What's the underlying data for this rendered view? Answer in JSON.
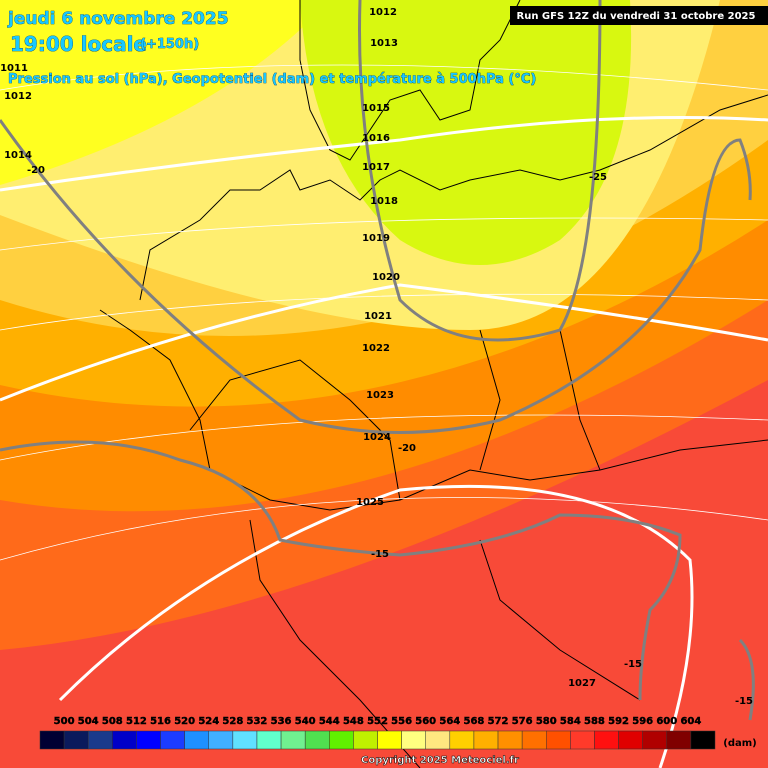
{
  "header": {
    "date": "jeudi 6 novembre 2025",
    "time": "19:00 locale",
    "lead": "(+150h)",
    "subtitle": "Pression au sol (hPa), Geopotentiel (dam) et température à 500hPa (°C)",
    "run": "Run GFS 12Z du vendredi 31 octobre 2025"
  },
  "isobar_labels": [
    "1012",
    "1013",
    "1011",
    "1012",
    "1014",
    "1015",
    "1016",
    "1017",
    "1018",
    "1019",
    "1020",
    "1021",
    "1022",
    "1023",
    "1024",
    "1025",
    "1027"
  ],
  "temperature_labels": [
    "-20",
    "-25",
    "-20",
    "-15",
    "-15",
    "-15"
  ],
  "legend": {
    "levels": [
      500,
      504,
      508,
      512,
      516,
      520,
      524,
      528,
      532,
      536,
      540,
      544,
      548,
      552,
      556,
      560,
      564,
      568,
      572,
      576,
      580,
      584,
      588,
      592,
      596,
      600,
      604
    ],
    "colors": [
      "#000033",
      "#0a1a5c",
      "#1a3a8c",
      "#0000c8",
      "#0000ff",
      "#1c3cff",
      "#1e90ff",
      "#40b0ff",
      "#60e0ff",
      "#60ffcc",
      "#70f090",
      "#50e050",
      "#60f000",
      "#c0f000",
      "#ffff00",
      "#ffff80",
      "#ffe880",
      "#ffd000",
      "#ffb000",
      "#ff9000",
      "#ff7000",
      "#ff5000",
      "#ff3a2a",
      "#ff1010",
      "#e00000",
      "#b00000",
      "#800000",
      "#000000"
    ],
    "unit": "(dam)"
  },
  "footer": {
    "copyright": "Copyright 2025 Meteociel.fr"
  }
}
